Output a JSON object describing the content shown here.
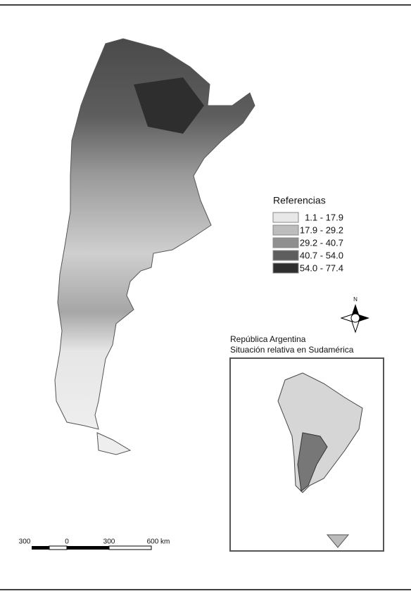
{
  "legend": {
    "title": "Referencias",
    "items": [
      {
        "label": "1.1 - 17.9",
        "color": "#e8e8e8"
      },
      {
        "label": "17.9 - 29.2",
        "color": "#bdbdbd"
      },
      {
        "label": "29.2 - 40.7",
        "color": "#8f8f8f"
      },
      {
        "label": "40.7 - 54.0",
        "color": "#5e5e5e"
      },
      {
        "label": "54.0 - 77.4",
        "color": "#2e2e2e"
      }
    ]
  },
  "compass": {
    "label": "N"
  },
  "inset": {
    "title": [
      "República Argentina",
      "Situación relativa en Sudamérica"
    ]
  },
  "scale_bar": {
    "labels": [
      "300",
      "0",
      "300",
      "600 km"
    ]
  }
}
